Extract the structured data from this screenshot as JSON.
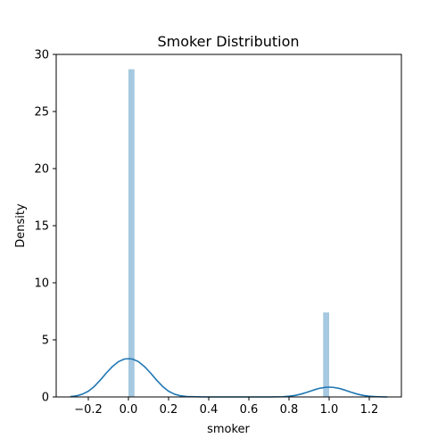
{
  "chart_data": {
    "type": "bar",
    "title": "Smoker Distribution",
    "xlabel": "smoker",
    "ylabel": "Density",
    "xlim": [
      -0.36,
      1.36
    ],
    "ylim": [
      0,
      30
    ],
    "xticks": [
      -0.2,
      0.0,
      0.2,
      0.4,
      0.6,
      0.8,
      1.0,
      1.2
    ],
    "xtick_labels": [
      "−0.2",
      "0.0",
      "0.2",
      "0.4",
      "0.6",
      "0.8",
      "1.0",
      "1.2"
    ],
    "yticks": [
      0,
      5,
      10,
      15,
      20,
      25,
      30
    ],
    "ytick_labels": [
      "0",
      "5",
      "10",
      "15",
      "20",
      "25",
      "30"
    ],
    "grid": false,
    "series": [
      {
        "kind": "histogram",
        "color": "#a6c8e0",
        "bars": [
          {
            "x0": 0.0,
            "x1": 0.03,
            "value": 28.7
          },
          {
            "x0": 0.97,
            "x1": 1.0,
            "value": 7.4
          }
        ]
      },
      {
        "kind": "kde",
        "color": "#1f77b4",
        "x": [
          -0.29,
          -0.26,
          -0.23,
          -0.2,
          -0.17,
          -0.14,
          -0.11,
          -0.08,
          -0.05,
          -0.02,
          0.0,
          0.02,
          0.05,
          0.08,
          0.11,
          0.14,
          0.17,
          0.2,
          0.23,
          0.26,
          0.29,
          0.35,
          0.4,
          0.5,
          0.6,
          0.7,
          0.74,
          0.77,
          0.8,
          0.83,
          0.86,
          0.89,
          0.92,
          0.95,
          0.98,
          1.0,
          1.02,
          1.05,
          1.08,
          1.11,
          1.14,
          1.17,
          1.2,
          1.23,
          1.26,
          1.29
        ],
        "y": [
          0.03,
          0.09,
          0.24,
          0.5,
          0.92,
          1.48,
          2.1,
          2.66,
          3.09,
          3.32,
          3.35,
          3.32,
          3.09,
          2.66,
          2.1,
          1.48,
          0.92,
          0.5,
          0.24,
          0.1,
          0.04,
          0.01,
          0.0,
          0.0,
          0.0,
          0.0,
          0.01,
          0.02,
          0.06,
          0.13,
          0.25,
          0.41,
          0.59,
          0.75,
          0.84,
          0.86,
          0.84,
          0.75,
          0.59,
          0.41,
          0.25,
          0.13,
          0.06,
          0.03,
          0.01,
          0.0
        ]
      }
    ]
  }
}
